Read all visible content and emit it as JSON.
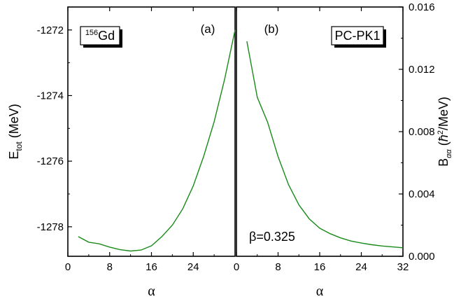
{
  "chart_data": [
    {
      "type": "line",
      "panel_tag": "(a)",
      "label_box": {
        "sup": "156",
        "text": "Gd"
      },
      "ylabel": {
        "main": "E",
        "sub": "tot",
        "unit": " (MeV)"
      },
      "xlabel": "α",
      "xlim": [
        0,
        32
      ],
      "ylim": [
        -1278.9,
        -1271.3
      ],
      "x_ticks": [
        0,
        8,
        16,
        24
      ],
      "x_tick_labels": [
        "0",
        "8",
        "16",
        "24"
      ],
      "y_ticks": [
        -1272,
        -1274,
        -1276,
        -1278
      ],
      "y_tick_labels": [
        "-1272",
        "-1274",
        "-1276",
        "-1278"
      ],
      "grid": false,
      "color": "#1a8a1a",
      "series": [
        {
          "x": [
            2,
            4,
            6,
            8,
            10,
            12,
            14,
            16,
            18,
            20,
            22,
            24,
            26,
            28,
            30,
            32
          ],
          "y": [
            -1278.3,
            -1278.47,
            -1278.52,
            -1278.62,
            -1278.7,
            -1278.74,
            -1278.71,
            -1278.58,
            -1278.3,
            -1277.95,
            -1277.45,
            -1276.75,
            -1275.85,
            -1274.8,
            -1273.5,
            -1272.0
          ]
        }
      ]
    },
    {
      "type": "line",
      "panel_tag": "(b)",
      "label_box": {
        "text": "PC-PK1"
      },
      "annotation": "β=0.325",
      "ylabel": {
        "main": "B",
        "sub": "αα",
        "unit_pre": " (",
        "hbar": "ħ",
        "sup": "2",
        "unit_post": "/MeV)"
      },
      "xlabel": "α",
      "xlim": [
        0,
        32
      ],
      "ylim": [
        0,
        0.016
      ],
      "x_ticks": [
        0,
        8,
        16,
        24,
        32
      ],
      "x_tick_labels": [
        "0",
        "8",
        "16",
        "24",
        "32"
      ],
      "y_ticks": [
        0,
        0.004,
        0.008,
        0.012,
        0.016
      ],
      "y_tick_labels": [
        "0.000",
        "0.004",
        "0.008",
        "0.012",
        "0.016"
      ],
      "grid": false,
      "color": "#1a8a1a",
      "series": [
        {
          "x": [
            2,
            4,
            6,
            8,
            10,
            12,
            14,
            16,
            18,
            20,
            22,
            24,
            26,
            28,
            30,
            32
          ],
          "y": [
            0.0138,
            0.0102,
            0.0086,
            0.0064,
            0.0046,
            0.0033,
            0.0024,
            0.0018,
            0.00145,
            0.00118,
            0.00098,
            0.00085,
            0.00074,
            0.00066,
            0.0006,
            0.00055
          ]
        }
      ]
    }
  ]
}
